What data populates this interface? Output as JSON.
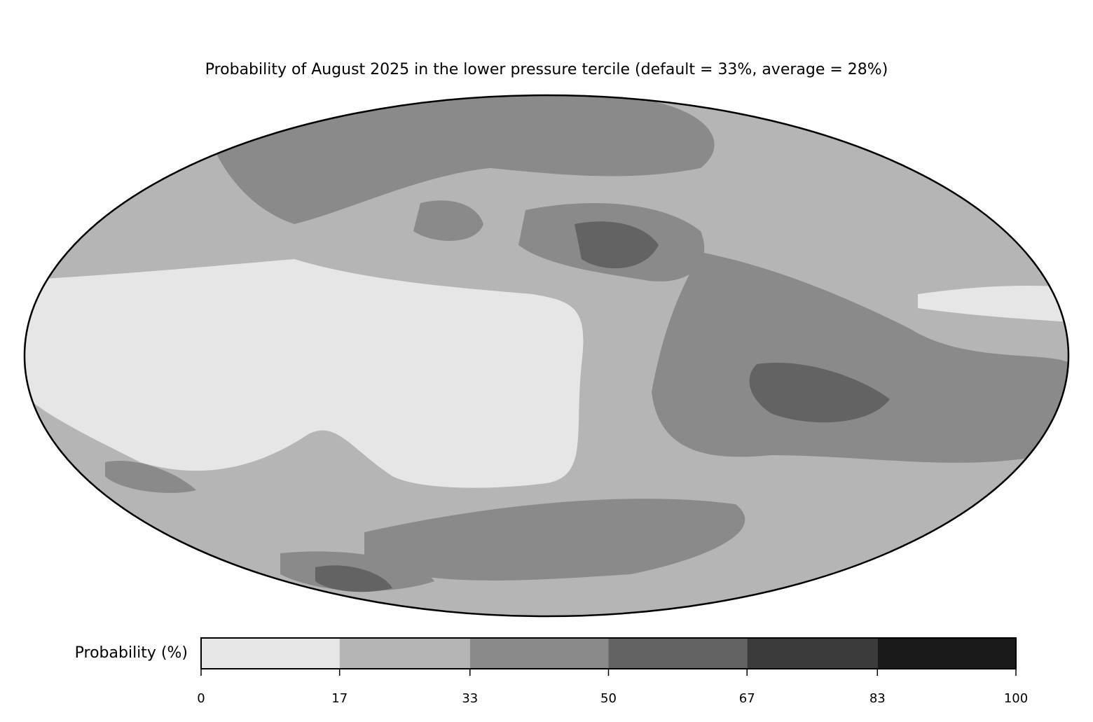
{
  "title": "Probability of August 2025 in the lower pressure tercile (default = 33%, average = 28%)",
  "colorbar": {
    "label": "Probability (%)",
    "ticks": [
      0,
      17,
      33,
      50,
      67,
      83,
      100
    ],
    "colors": [
      "#e6e6e6",
      "#b5b5b5",
      "#8a8a8a",
      "#636363",
      "#3b3b3b",
      "#1a1a1a"
    ]
  }
}
